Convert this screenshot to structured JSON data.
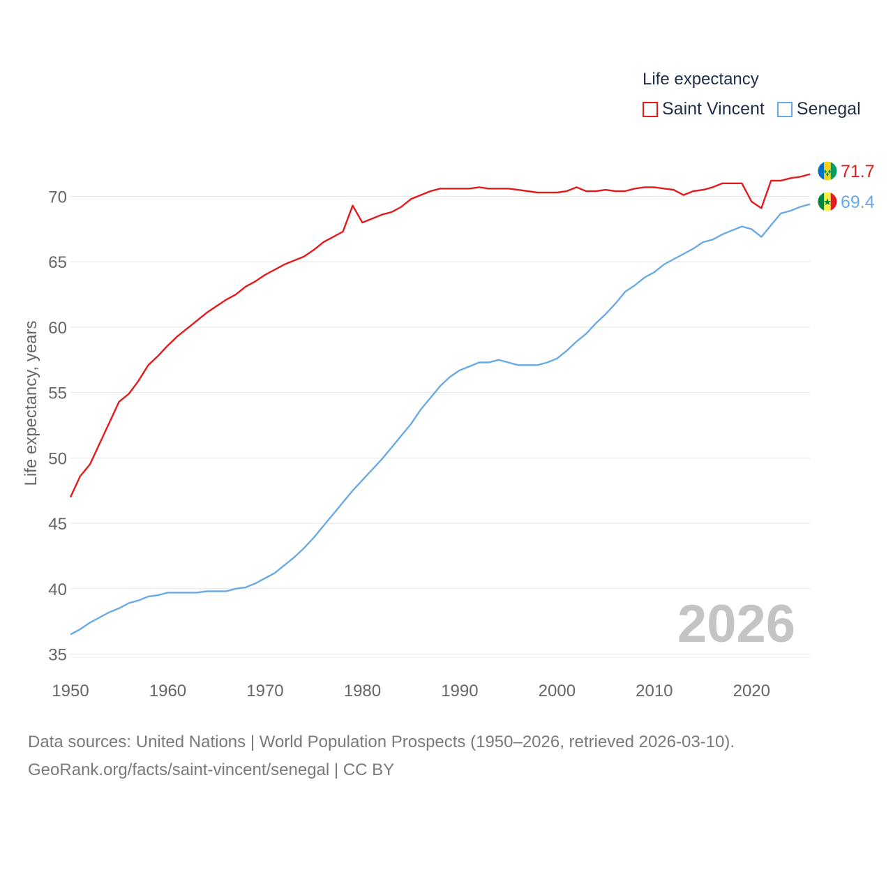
{
  "legend": {
    "title": "Life expectancy",
    "items": [
      {
        "label": "Saint Vincent",
        "color": "#e31a1c"
      },
      {
        "label": "Senegal",
        "color": "#6aaae4"
      }
    ]
  },
  "year_watermark": "2026",
  "source": {
    "line1": "Data sources: United Nations | World Population Prospects (1950–2026, retrieved 2026-03-10).",
    "line2": "GeoRank.org/facts/saint-vincent/senegal | CC BY"
  },
  "chart_data": {
    "type": "line",
    "title": "Life expectancy",
    "xlabel": "",
    "ylabel": "Life expectancy, years",
    "xlim": [
      1950,
      2026
    ],
    "ylim": [
      35,
      72
    ],
    "xticks": [
      1950,
      1960,
      1970,
      1980,
      1990,
      2000,
      2010,
      2020
    ],
    "yticks": [
      35,
      40,
      45,
      50,
      55,
      60,
      65,
      70
    ],
    "grid": true,
    "x": [
      1950,
      1951,
      1952,
      1953,
      1954,
      1955,
      1956,
      1957,
      1958,
      1959,
      1960,
      1961,
      1962,
      1963,
      1964,
      1965,
      1966,
      1967,
      1968,
      1969,
      1970,
      1971,
      1972,
      1973,
      1974,
      1975,
      1976,
      1977,
      1978,
      1979,
      1980,
      1981,
      1982,
      1983,
      1984,
      1985,
      1986,
      1987,
      1988,
      1989,
      1990,
      1991,
      1992,
      1993,
      1994,
      1995,
      1996,
      1997,
      1998,
      1999,
      2000,
      2001,
      2002,
      2003,
      2004,
      2005,
      2006,
      2007,
      2008,
      2009,
      2010,
      2011,
      2012,
      2013,
      2014,
      2015,
      2016,
      2017,
      2018,
      2019,
      2020,
      2021,
      2022,
      2023,
      2024,
      2025,
      2026
    ],
    "series": [
      {
        "name": "Saint Vincent",
        "color": "#e31a1c",
        "end_label": "71.7",
        "flag": "saint-vincent-flag",
        "values": [
          47.0,
          48.6,
          49.5,
          51.1,
          52.7,
          54.3,
          54.9,
          55.9,
          57.1,
          57.8,
          58.6,
          59.3,
          59.9,
          60.5,
          61.1,
          61.6,
          62.1,
          62.5,
          63.1,
          63.5,
          64.0,
          64.4,
          64.8,
          65.1,
          65.4,
          65.9,
          66.5,
          66.9,
          67.3,
          69.3,
          68.0,
          68.3,
          68.6,
          68.8,
          69.2,
          69.8,
          70.1,
          70.4,
          70.6,
          70.6,
          70.6,
          70.6,
          70.7,
          70.6,
          70.6,
          70.6,
          70.5,
          70.4,
          70.3,
          70.3,
          70.3,
          70.4,
          70.7,
          70.4,
          70.4,
          70.5,
          70.4,
          70.4,
          70.6,
          70.7,
          70.7,
          70.6,
          70.5,
          70.1,
          70.4,
          70.5,
          70.7,
          71.0,
          71.0,
          71.0,
          69.6,
          69.1,
          71.2,
          71.2,
          71.4,
          71.5,
          71.7
        ]
      },
      {
        "name": "Senegal",
        "color": "#6aaae4",
        "end_label": "69.4",
        "flag": "senegal-flag",
        "values": [
          36.5,
          36.9,
          37.4,
          37.8,
          38.2,
          38.5,
          38.9,
          39.1,
          39.4,
          39.5,
          39.7,
          39.7,
          39.7,
          39.7,
          39.8,
          39.8,
          39.8,
          40.0,
          40.1,
          40.4,
          40.8,
          41.2,
          41.8,
          42.4,
          43.1,
          43.9,
          44.8,
          45.7,
          46.6,
          47.5,
          48.3,
          49.1,
          49.9,
          50.8,
          51.7,
          52.6,
          53.7,
          54.6,
          55.5,
          56.2,
          56.7,
          57.0,
          57.3,
          57.3,
          57.5,
          57.3,
          57.1,
          57.1,
          57.1,
          57.3,
          57.6,
          58.2,
          58.9,
          59.5,
          60.3,
          61.0,
          61.8,
          62.7,
          63.2,
          63.8,
          64.2,
          64.8,
          65.2,
          65.6,
          66.0,
          66.5,
          66.7,
          67.1,
          67.4,
          67.7,
          67.5,
          66.9,
          67.8,
          68.7,
          68.9,
          69.2,
          69.4
        ]
      }
    ]
  }
}
